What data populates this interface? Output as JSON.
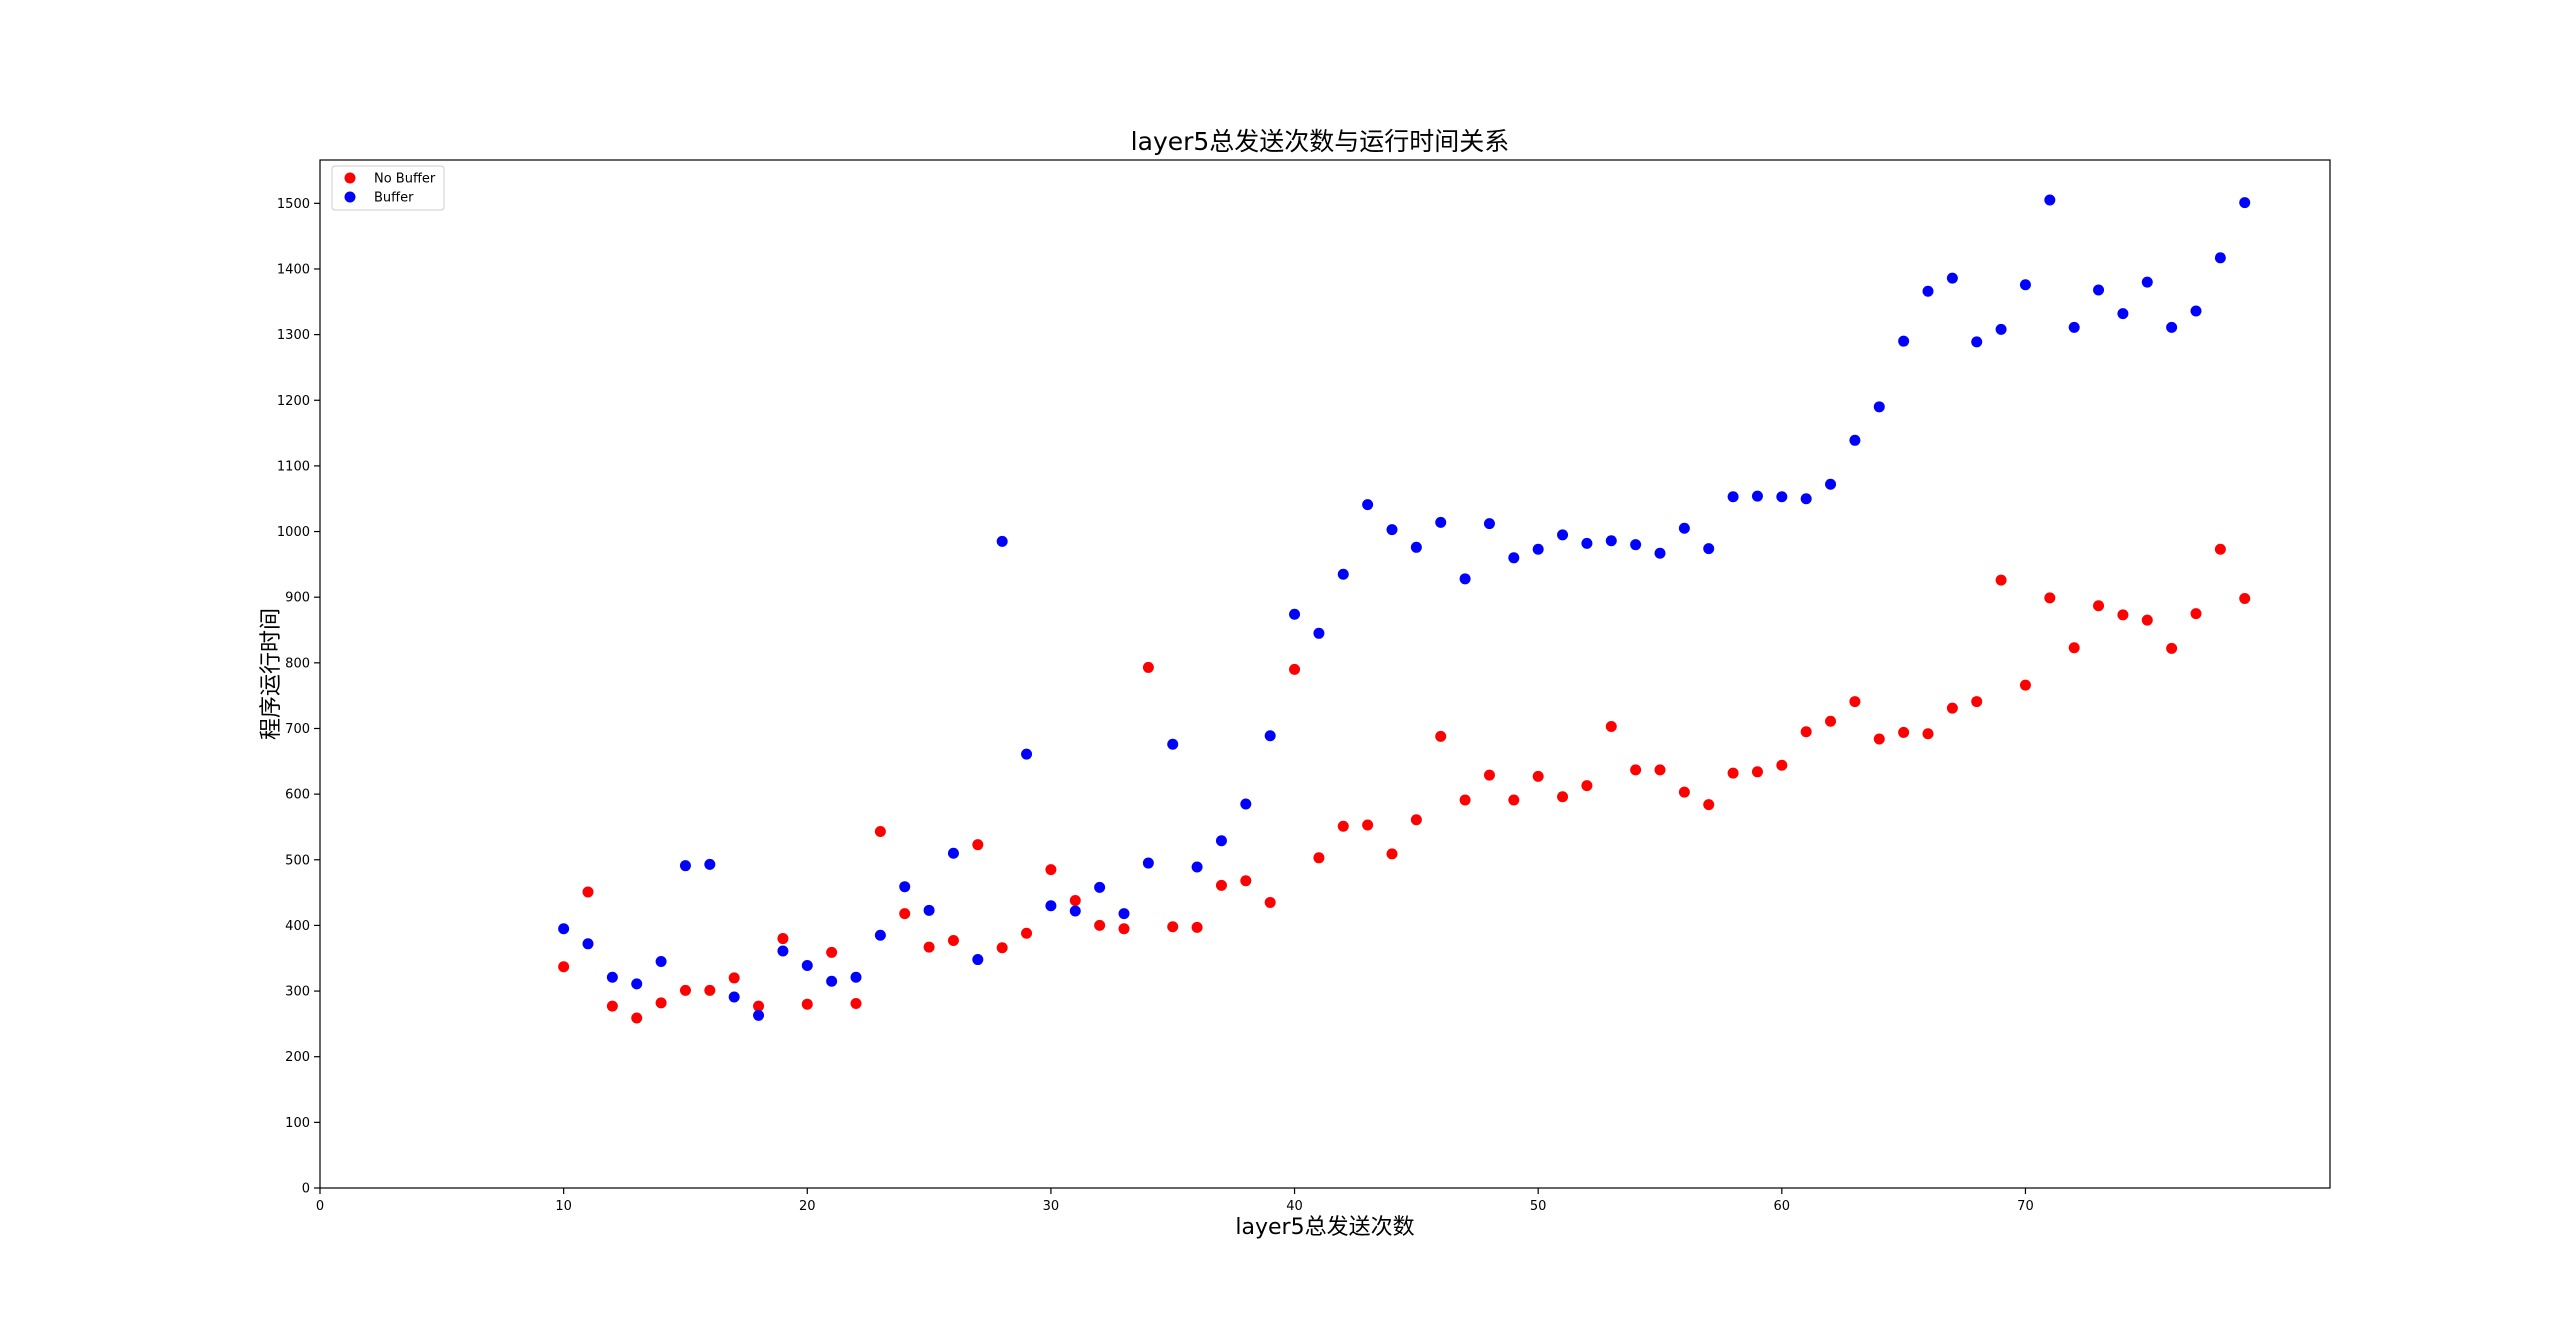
{
  "chart_data": {
    "type": "scatter",
    "title": "layer5总发送次数与运行时间关系",
    "xlabel": "layer5总发送次数",
    "ylabel": "程序运行时间",
    "xlim": [
      0,
      82.5
    ],
    "ylim": [
      0,
      1566
    ],
    "xticks": [
      0,
      10,
      20,
      30,
      40,
      50,
      60,
      70
    ],
    "yticks": [
      0,
      100,
      200,
      300,
      400,
      500,
      600,
      700,
      800,
      900,
      1000,
      1100,
      1200,
      1300,
      1400,
      1500
    ],
    "grid": false,
    "legend_position": "top-left",
    "x": [
      10,
      11,
      12,
      13,
      14,
      15,
      16,
      17,
      18,
      19,
      20,
      21,
      22,
      23,
      24,
      25,
      26,
      27,
      28,
      29,
      30,
      31,
      32,
      33,
      34,
      35,
      36,
      37,
      38,
      39,
      40,
      41,
      42,
      43,
      44,
      45,
      46,
      47,
      48,
      49,
      50,
      51,
      52,
      53,
      54,
      55,
      56,
      57,
      58,
      59,
      60,
      61,
      62,
      63,
      64,
      65,
      66,
      67,
      68,
      69,
      70,
      71,
      72,
      73,
      74,
      75,
      76,
      77,
      78,
      79
    ],
    "series": [
      {
        "name": "No Buffer",
        "color": "#ff0000",
        "values": [
          337,
          451,
          277,
          259,
          282,
          301,
          301,
          320,
          277,
          380,
          280,
          359,
          281,
          543,
          418,
          367,
          377,
          523,
          366,
          388,
          485,
          438,
          400,
          395,
          793,
          398,
          397,
          461,
          468,
          435,
          790,
          503,
          551,
          553,
          509,
          561,
          688,
          591,
          629,
          591,
          627,
          596,
          613,
          703,
          637,
          637,
          603,
          584,
          632,
          634,
          644,
          695,
          711,
          741,
          684,
          694,
          692,
          731,
          741,
          926,
          766,
          899,
          823,
          887,
          873,
          865,
          822,
          875,
          973,
          898
        ]
      },
      {
        "name": "Buffer",
        "color": "#0000ff",
        "values": [
          395,
          372,
          321,
          311,
          345,
          491,
          493,
          291,
          263,
          361,
          339,
          315,
          321,
          385,
          459,
          423,
          510,
          348,
          985,
          661,
          430,
          422,
          458,
          418,
          495,
          676,
          489,
          529,
          585,
          689,
          874,
          845,
          935,
          1041,
          1003,
          976,
          1014,
          928,
          1012,
          960,
          973,
          995,
          982,
          986,
          980,
          967,
          1005,
          974,
          1053,
          1054,
          1053,
          1050,
          1072,
          1139,
          1190,
          1290,
          1366,
          1386,
          1289,
          1308,
          1376,
          1505,
          1311,
          1368,
          1332,
          1380,
          1311,
          1336,
          1417,
          1501
        ]
      }
    ]
  }
}
